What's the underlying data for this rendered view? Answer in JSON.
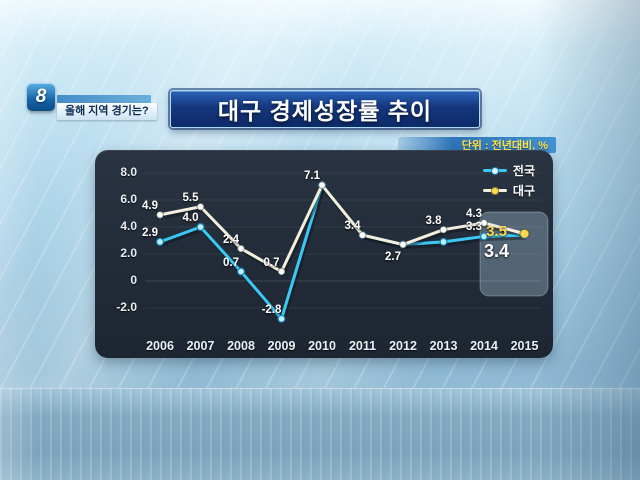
{
  "header": {
    "channel_logo": "8",
    "caption": "올해 지역 경기는?",
    "title": "대구 경제성장률 추이",
    "unit_label": "단위 : 전년대비, %"
  },
  "chart_data": {
    "type": "line",
    "title": "대구 경제성장률 추이",
    "unit": "전년대비, %",
    "x": [
      "2006",
      "2007",
      "2008",
      "2009",
      "2010",
      "2011",
      "2012",
      "2013",
      "2014",
      "2015"
    ],
    "y_ticks": [
      "8.0",
      "6.0",
      "4.0",
      "2.0",
      "0",
      "-2.0"
    ],
    "y_tick_values": [
      8,
      6,
      4,
      2,
      0,
      -2
    ],
    "ylim": [
      -3.5,
      9
    ],
    "grid": false,
    "legend_position": "top-right",
    "highlight_year": "2015",
    "series": [
      {
        "name": "전국",
        "color": "#3cc8f5",
        "values": [
          2.9,
          4.0,
          0.7,
          -2.8,
          7.1,
          3.4,
          2.7,
          2.9,
          3.3,
          3.4
        ],
        "labels": [
          "2.9",
          "4.0",
          "0.7",
          "-2.8",
          null,
          null,
          null,
          null,
          "3.3",
          "3.4"
        ],
        "label_sides": [
          "a",
          "a",
          "a",
          "a",
          null,
          null,
          null,
          null,
          "a",
          "b"
        ]
      },
      {
        "name": "대구",
        "color": "#f3efdc",
        "end_dot_color": "#ffd84d",
        "values": [
          4.9,
          5.5,
          2.4,
          0.7,
          7.1,
          3.4,
          2.7,
          3.8,
          4.3,
          3.5
        ],
        "labels": [
          "4.9",
          "5.5",
          "2.4",
          "0.7",
          "7.1",
          "3.4",
          "2.7",
          "3.8",
          "4.3",
          "3.5"
        ],
        "label_sides": [
          "a",
          "a",
          "a",
          "a",
          "a",
          "a",
          "b",
          "a",
          "a",
          "a"
        ]
      }
    ]
  }
}
